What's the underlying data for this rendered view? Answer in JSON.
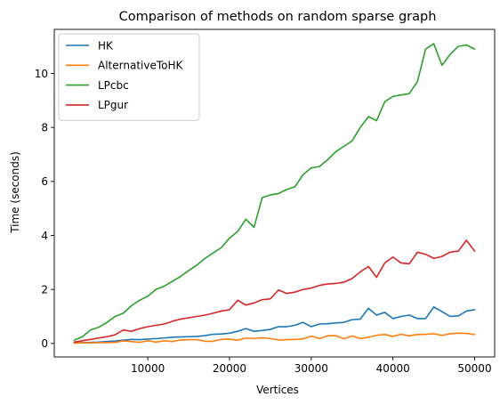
{
  "chart_data": {
    "type": "line",
    "title": "Comparison of methods on random sparse graph",
    "xlabel": "Vertices",
    "ylabel": "Time (seconds)",
    "xlim": [
      -1450,
      52450
    ],
    "ylim": [
      -0.5,
      11.63
    ],
    "xticks": [
      10000,
      20000,
      30000,
      40000,
      50000
    ],
    "xtick_labels": [
      "10000",
      "20000",
      "30000",
      "40000",
      "50000"
    ],
    "yticks": [
      0,
      2,
      4,
      6,
      8,
      10
    ],
    "ytick_labels": [
      "0",
      "2",
      "4",
      "6",
      "8",
      "10"
    ],
    "grid": false,
    "legend_position": "upper-left",
    "x": [
      1000,
      2000,
      3000,
      4000,
      5000,
      6000,
      7000,
      8000,
      9000,
      10000,
      11000,
      12000,
      13000,
      14000,
      15000,
      16000,
      17000,
      18000,
      19000,
      20000,
      21000,
      22000,
      23000,
      24000,
      25000,
      26000,
      27000,
      28000,
      29000,
      30000,
      31000,
      32000,
      33000,
      34000,
      35000,
      36000,
      37000,
      38000,
      39000,
      40000,
      41000,
      42000,
      43000,
      44000,
      45000,
      46000,
      47000,
      48000,
      49000,
      50000
    ],
    "series": [
      {
        "name": "HK",
        "color": "#1f77b4",
        "values": [
          0.02,
          0.03,
          0.04,
          0.05,
          0.07,
          0.09,
          0.12,
          0.15,
          0.14,
          0.16,
          0.18,
          0.2,
          0.23,
          0.24,
          0.25,
          0.26,
          0.29,
          0.34,
          0.35,
          0.38,
          0.45,
          0.55,
          0.45,
          0.48,
          0.52,
          0.62,
          0.62,
          0.67,
          0.78,
          0.62,
          0.72,
          0.73,
          0.76,
          0.78,
          0.88,
          0.9,
          1.3,
          1.05,
          1.15,
          0.92,
          1.0,
          1.05,
          0.92,
          0.92,
          1.35,
          1.18,
          1.0,
          1.02,
          1.2,
          1.25
        ]
      },
      {
        "name": "AlternativeToHK",
        "color": "#ff7f0e",
        "values": [
          0.01,
          0.02,
          0.02,
          0.03,
          0.03,
          0.04,
          0.09,
          0.07,
          0.04,
          0.1,
          0.05,
          0.1,
          0.07,
          0.13,
          0.14,
          0.14,
          0.08,
          0.08,
          0.15,
          0.16,
          0.12,
          0.2,
          0.18,
          0.21,
          0.18,
          0.13,
          0.14,
          0.15,
          0.17,
          0.27,
          0.18,
          0.28,
          0.29,
          0.17,
          0.28,
          0.18,
          0.23,
          0.3,
          0.33,
          0.26,
          0.34,
          0.28,
          0.33,
          0.34,
          0.36,
          0.3,
          0.36,
          0.38,
          0.37,
          0.33
        ]
      },
      {
        "name": "LPcbc",
        "color": "#2ca02c",
        "values": [
          0.12,
          0.25,
          0.5,
          0.6,
          0.78,
          1.0,
          1.12,
          1.4,
          1.6,
          1.75,
          2.0,
          2.12,
          2.3,
          2.48,
          2.7,
          2.9,
          3.15,
          3.35,
          3.55,
          3.9,
          4.15,
          4.6,
          4.3,
          5.4,
          5.5,
          5.55,
          5.7,
          5.8,
          6.25,
          6.5,
          6.55,
          6.8,
          7.1,
          7.3,
          7.5,
          8.0,
          8.4,
          8.25,
          8.95,
          9.15,
          9.2,
          9.25,
          9.7,
          10.9,
          11.1,
          10.3,
          10.7,
          11.0,
          11.05,
          10.9
        ]
      },
      {
        "name": "LPgur",
        "color": "#d62728",
        "values": [
          0.05,
          0.1,
          0.15,
          0.2,
          0.25,
          0.32,
          0.5,
          0.45,
          0.55,
          0.62,
          0.67,
          0.72,
          0.82,
          0.9,
          0.95,
          1.0,
          1.05,
          1.12,
          1.2,
          1.25,
          1.6,
          1.42,
          1.5,
          1.62,
          1.65,
          1.98,
          1.85,
          1.9,
          2.0,
          2.05,
          2.15,
          2.2,
          2.22,
          2.27,
          2.4,
          2.65,
          2.85,
          2.45,
          2.98,
          3.2,
          2.98,
          2.95,
          3.38,
          3.3,
          3.15,
          3.22,
          3.38,
          3.42,
          3.82,
          3.42
        ]
      }
    ]
  }
}
